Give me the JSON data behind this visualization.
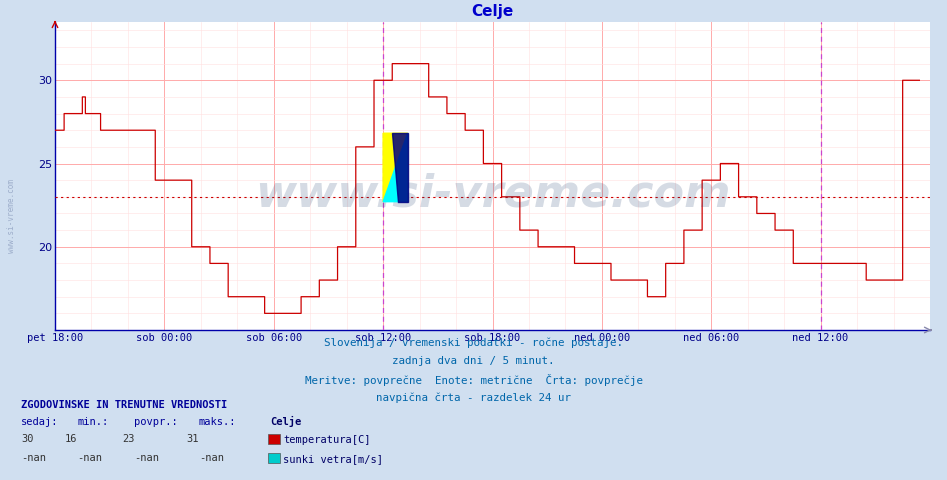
{
  "title": "Celje",
  "title_color": "#0000cc",
  "background_color": "#d0dff0",
  "plot_bg_color": "#ffffff",
  "line_color": "#cc0000",
  "grid_color_major": "#ffaaaa",
  "grid_color_minor": "#ffe0e0",
  "vline_color": "#cc44cc",
  "avg_line_color": "#cc0000",
  "avg_line_value": 23,
  "ytick_color": "#000088",
  "xtick_color": "#000088",
  "yticks": [
    20,
    25,
    30
  ],
  "ylim": [
    15.5,
    33.5
  ],
  "footnote_lines": [
    "Slovenija / vremenski podatki - ročne postaje.",
    "zadnja dva dni / 5 minut.",
    "Meritve: povprečne  Enote: metrične  Črta: povprečje",
    "navpična črta - razdelek 24 ur"
  ],
  "footnote_color": "#0066aa",
  "legend_title": "ZGODOVINSKE IN TRENUTNE VREDNOSTI",
  "legend_title_color": "#000099",
  "legend_headers": [
    "sedaj:",
    "min.:",
    "povpr.:",
    "maks.:"
  ],
  "legend_values": [
    "30",
    "16",
    "23",
    "31"
  ],
  "legend_location_name": "Celje",
  "legend_series": [
    {
      "label": "temperatura[C]",
      "color": "#cc0000"
    },
    {
      "label": "sunki vetra[m/s]",
      "color": "#00cccc"
    }
  ],
  "legend_values2": [
    "-nan",
    "-nan",
    "-nan",
    "-nan"
  ],
  "watermark_text": "www.si-vreme.com",
  "watermark_color": "#1a3a6a",
  "watermark_alpha": 0.18,
  "left_watermark": "www.si-vreme.com",
  "x_tick_labels": [
    "pet 18:00",
    "sob 00:00",
    "sob 06:00",
    "sob 12:00",
    "sob 18:00",
    "ned 00:00",
    "ned 06:00",
    "ned 12:00"
  ],
  "x_tick_positions": [
    0,
    72,
    144,
    216,
    288,
    360,
    432,
    504
  ],
  "total_points": 576,
  "vline_positions": [
    216,
    504
  ],
  "temp_data": [
    27,
    27,
    27,
    27,
    27,
    27,
    28,
    28,
    28,
    28,
    28,
    28,
    28,
    28,
    28,
    28,
    28,
    28,
    29,
    29,
    28,
    28,
    28,
    28,
    28,
    28,
    28,
    28,
    28,
    28,
    27,
    27,
    27,
    27,
    27,
    27,
    27,
    27,
    27,
    27,
    27,
    27,
    27,
    27,
    27,
    27,
    27,
    27,
    27,
    27,
    27,
    27,
    27,
    27,
    27,
    27,
    27,
    27,
    27,
    27,
    27,
    27,
    27,
    27,
    27,
    27,
    24,
    24,
    24,
    24,
    24,
    24,
    24,
    24,
    24,
    24,
    24,
    24,
    24,
    24,
    24,
    24,
    24,
    24,
    24,
    24,
    24,
    24,
    24,
    24,
    20,
    20,
    20,
    20,
    20,
    20,
    20,
    20,
    20,
    20,
    20,
    20,
    19,
    19,
    19,
    19,
    19,
    19,
    19,
    19,
    19,
    19,
    19,
    19,
    17,
    17,
    17,
    17,
    17,
    17,
    17,
    17,
    17,
    17,
    17,
    17,
    17,
    17,
    17,
    17,
    17,
    17,
    17,
    17,
    17,
    17,
    17,
    17,
    16,
    16,
    16,
    16,
    16,
    16,
    16,
    16,
    16,
    16,
    16,
    16,
    16,
    16,
    16,
    16,
    16,
    16,
    16,
    16,
    16,
    16,
    16,
    16,
    17,
    17,
    17,
    17,
    17,
    17,
    17,
    17,
    17,
    17,
    17,
    17,
    18,
    18,
    18,
    18,
    18,
    18,
    18,
    18,
    18,
    18,
    18,
    18,
    20,
    20,
    20,
    20,
    20,
    20,
    20,
    20,
    20,
    20,
    20,
    20,
    26,
    26,
    26,
    26,
    26,
    26,
    26,
    26,
    26,
    26,
    26,
    26,
    30,
    30,
    30,
    30,
    30,
    30,
    30,
    30,
    30,
    30,
    30,
    30,
    31,
    31,
    31,
    31,
    31,
    31,
    31,
    31,
    31,
    31,
    31,
    31,
    31,
    31,
    31,
    31,
    31,
    31,
    31,
    31,
    31,
    31,
    31,
    31,
    29,
    29,
    29,
    29,
    29,
    29,
    29,
    29,
    29,
    29,
    29,
    29,
    28,
    28,
    28,
    28,
    28,
    28,
    28,
    28,
    28,
    28,
    28,
    28,
    27,
    27,
    27,
    27,
    27,
    27,
    27,
    27,
    27,
    27,
    27,
    27,
    25,
    25,
    25,
    25,
    25,
    25,
    25,
    25,
    25,
    25,
    25,
    25,
    23,
    23,
    23,
    23,
    23,
    23,
    23,
    23,
    23,
    23,
    23,
    23,
    21,
    21,
    21,
    21,
    21,
    21,
    21,
    21,
    21,
    21,
    21,
    21,
    20,
    20,
    20,
    20,
    20,
    20,
    20,
    20,
    20,
    20,
    20,
    20,
    20,
    20,
    20,
    20,
    20,
    20,
    20,
    20,
    20,
    20,
    20,
    20,
    19,
    19,
    19,
    19,
    19,
    19,
    19,
    19,
    19,
    19,
    19,
    19,
    19,
    19,
    19,
    19,
    19,
    19,
    19,
    19,
    19,
    19,
    19,
    19,
    18,
    18,
    18,
    18,
    18,
    18,
    18,
    18,
    18,
    18,
    18,
    18,
    18,
    18,
    18,
    18,
    18,
    18,
    18,
    18,
    18,
    18,
    18,
    18,
    17,
    17,
    17,
    17,
    17,
    17,
    17,
    17,
    17,
    17,
    17,
    17,
    19,
    19,
    19,
    19,
    19,
    19,
    19,
    19,
    19,
    19,
    19,
    19,
    21,
    21,
    21,
    21,
    21,
    21,
    21,
    21,
    21,
    21,
    21,
    21,
    24,
    24,
    24,
    24,
    24,
    24,
    24,
    24,
    24,
    24,
    24,
    24,
    25,
    25,
    25,
    25,
    25,
    25,
    25,
    25,
    25,
    25,
    25,
    25,
    23,
    23,
    23,
    23,
    23,
    23,
    23,
    23,
    23,
    23,
    23,
    23,
    22,
    22,
    22,
    22,
    22,
    22,
    22,
    22,
    22,
    22,
    22,
    22,
    21,
    21,
    21,
    21,
    21,
    21,
    21,
    21,
    21,
    21,
    21,
    21,
    19,
    19,
    19,
    19,
    19,
    19,
    19,
    19,
    19,
    19,
    19,
    19,
    19,
    19,
    19,
    19,
    19,
    19,
    19,
    19,
    19,
    19,
    19,
    19,
    19,
    19,
    19,
    19,
    19,
    19,
    19,
    19,
    19,
    19,
    19,
    19,
    19,
    19,
    19,
    19,
    19,
    19,
    19,
    19,
    19,
    19,
    19,
    19,
    18,
    18,
    18,
    18,
    18,
    18,
    18,
    18,
    18,
    18,
    18,
    18,
    18,
    18,
    18,
    18,
    18,
    18,
    18,
    18,
    18,
    18,
    18,
    18,
    30,
    30,
    30,
    30,
    30,
    30,
    30,
    30,
    30,
    30,
    30,
    30
  ]
}
